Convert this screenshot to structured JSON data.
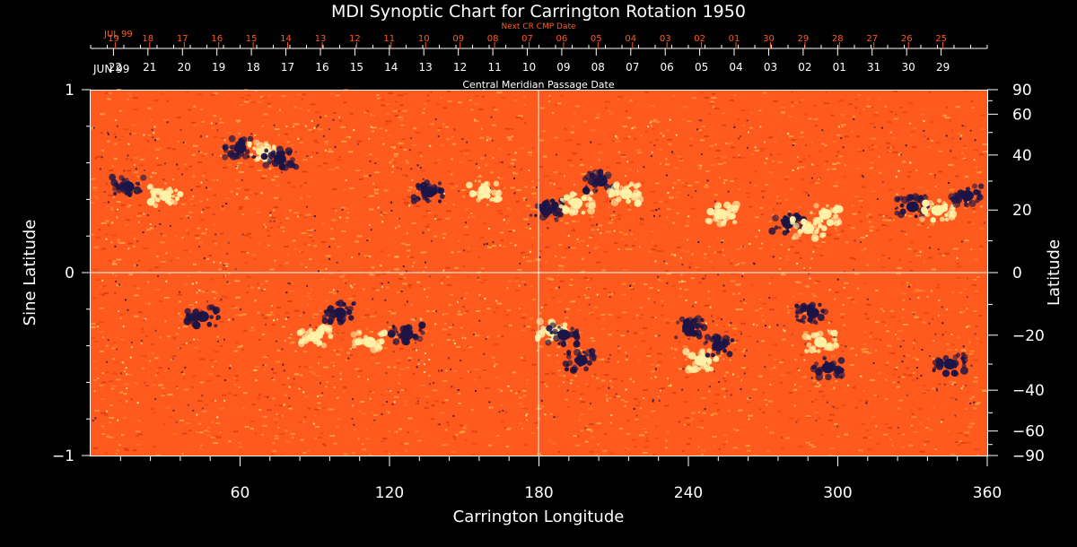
{
  "colors": {
    "background": "#000000",
    "foreground": "#ffffff",
    "accent_orange": "#ff5a1e",
    "field_base": "#ff5a1e",
    "positive_polarity": "#fff2a8",
    "negative_polarity": "#1c1446"
  },
  "chart_data": {
    "type": "heatmap",
    "title": "MDI Synoptic Chart for Carrington Rotation 1950",
    "xlabel": "Carrington Longitude",
    "ylabel_left": "Sine Latitude",
    "ylabel_right": "Latitude",
    "xlim": [
      0,
      360
    ],
    "ylim": [
      -1,
      1
    ],
    "x_ticks": [
      "60",
      "120",
      "180",
      "240",
      "300",
      "360"
    ],
    "x_tick_values": [
      60,
      120,
      180,
      240,
      300,
      360
    ],
    "y_left_ticks": [
      "1",
      "0",
      "−1"
    ],
    "y_left_tick_values": [
      1,
      0,
      -1
    ],
    "y_right_ticks": [
      "90",
      "60",
      "40",
      "20",
      "0",
      "−20",
      "−40",
      "−60",
      "−90"
    ],
    "y_right_tick_values": [
      90,
      60,
      40,
      20,
      0,
      -20,
      -40,
      -60,
      -90
    ],
    "grid": "crosshair at longitude 180 and sine latitude 0",
    "top_axis_primary": {
      "label": "Central Meridian Passage Date",
      "month": "JUN 99",
      "dates": [
        "22",
        "21",
        "20",
        "19",
        "18",
        "17",
        "16",
        "15",
        "14",
        "13",
        "12",
        "11",
        "10",
        "09",
        "08",
        "07",
        "06",
        "05",
        "04",
        "03",
        "02",
        "01",
        "31",
        "30",
        "29"
      ]
    },
    "top_axis_secondary": {
      "label": "Next CR CMP Date",
      "month": "JUL 99",
      "dates": [
        "19",
        "18",
        "17",
        "16",
        "15",
        "14",
        "13",
        "12",
        "11",
        "10",
        "09",
        "08",
        "07",
        "06",
        "05",
        "04",
        "03",
        "02",
        "01",
        "30",
        "29",
        "28",
        "27",
        "26",
        "25"
      ]
    },
    "active_regions": [
      {
        "lon": 15,
        "sinlat": 0.47,
        "polarity": "negative"
      },
      {
        "lon": 30,
        "sinlat": 0.42,
        "polarity": "positive"
      },
      {
        "lon": 60,
        "sinlat": 0.68,
        "polarity": "negative"
      },
      {
        "lon": 70,
        "sinlat": 0.66,
        "polarity": "positive"
      },
      {
        "lon": 76,
        "sinlat": 0.62,
        "polarity": "negative"
      },
      {
        "lon": 136,
        "sinlat": 0.44,
        "polarity": "negative"
      },
      {
        "lon": 158,
        "sinlat": 0.45,
        "polarity": "positive"
      },
      {
        "lon": 183,
        "sinlat": 0.34,
        "polarity": "negative"
      },
      {
        "lon": 195,
        "sinlat": 0.38,
        "polarity": "positive"
      },
      {
        "lon": 205,
        "sinlat": 0.5,
        "polarity": "negative"
      },
      {
        "lon": 215,
        "sinlat": 0.43,
        "polarity": "positive"
      },
      {
        "lon": 253,
        "sinlat": 0.32,
        "polarity": "positive"
      },
      {
        "lon": 280,
        "sinlat": 0.27,
        "polarity": "negative"
      },
      {
        "lon": 288,
        "sinlat": 0.24,
        "polarity": "positive"
      },
      {
        "lon": 295,
        "sinlat": 0.32,
        "polarity": "positive"
      },
      {
        "lon": 330,
        "sinlat": 0.36,
        "polarity": "negative"
      },
      {
        "lon": 340,
        "sinlat": 0.34,
        "polarity": "positive"
      },
      {
        "lon": 352,
        "sinlat": 0.42,
        "polarity": "negative"
      },
      {
        "lon": 45,
        "sinlat": -0.24,
        "polarity": "negative"
      },
      {
        "lon": 90,
        "sinlat": -0.35,
        "polarity": "positive"
      },
      {
        "lon": 100,
        "sinlat": -0.22,
        "polarity": "negative"
      },
      {
        "lon": 112,
        "sinlat": -0.38,
        "polarity": "positive"
      },
      {
        "lon": 127,
        "sinlat": -0.34,
        "polarity": "negative"
      },
      {
        "lon": 185,
        "sinlat": -0.32,
        "polarity": "positive"
      },
      {
        "lon": 190,
        "sinlat": -0.34,
        "polarity": "negative"
      },
      {
        "lon": 197,
        "sinlat": -0.48,
        "polarity": "negative"
      },
      {
        "lon": 240,
        "sinlat": -0.3,
        "polarity": "negative"
      },
      {
        "lon": 245,
        "sinlat": -0.48,
        "polarity": "positive"
      },
      {
        "lon": 252,
        "sinlat": -0.4,
        "polarity": "negative"
      },
      {
        "lon": 290,
        "sinlat": -0.22,
        "polarity": "negative"
      },
      {
        "lon": 293,
        "sinlat": -0.38,
        "polarity": "positive"
      },
      {
        "lon": 296,
        "sinlat": -0.52,
        "polarity": "negative"
      },
      {
        "lon": 345,
        "sinlat": -0.5,
        "polarity": "negative"
      }
    ]
  }
}
